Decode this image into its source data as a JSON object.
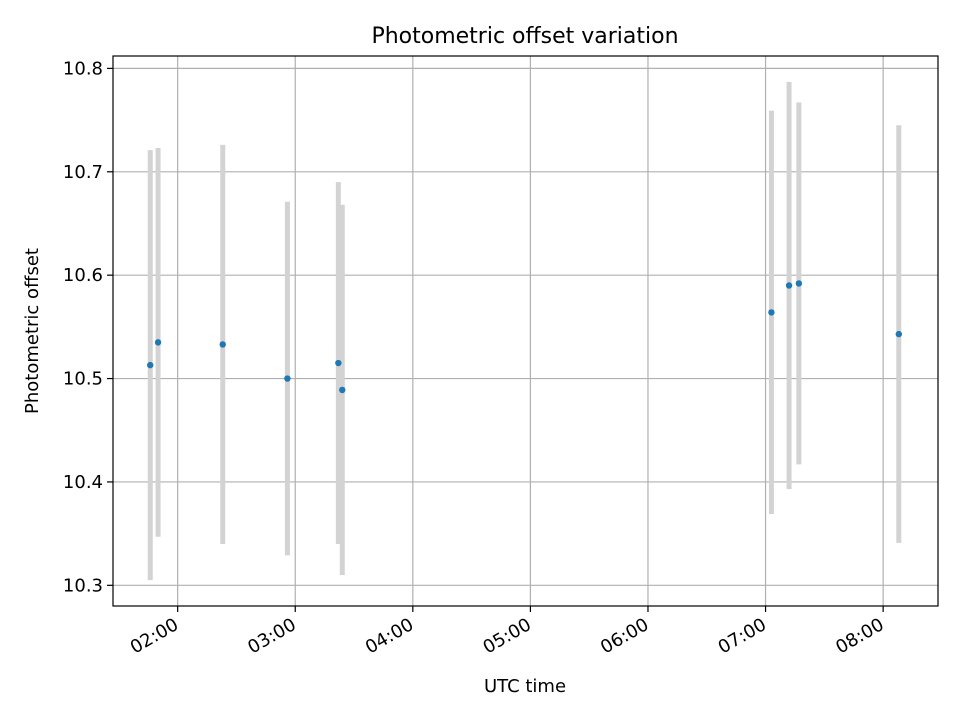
{
  "chart_data": {
    "type": "scatter",
    "title": "Photometric offset variation",
    "xlabel": "UTC time",
    "ylabel": "Photometric offset",
    "xlim": [
      "01:27",
      "08:28"
    ],
    "ylim": [
      10.28,
      10.812
    ],
    "x_ticks": [
      "02:00",
      "03:00",
      "04:00",
      "05:00",
      "06:00",
      "07:00",
      "08:00"
    ],
    "y_ticks": [
      10.3,
      10.4,
      10.5,
      10.6,
      10.7,
      10.8
    ],
    "grid": true,
    "legend": "none",
    "point_color": "#1f77b4",
    "errorbar_color": "#d3d3d3",
    "series": [
      {
        "points": [
          {
            "x": "01:46",
            "y": 10.513,
            "err": 0.208
          },
          {
            "x": "01:50",
            "y": 10.535,
            "err": 0.188
          },
          {
            "x": "02:23",
            "y": 10.533,
            "err": 0.193
          },
          {
            "x": "02:56",
            "y": 10.5,
            "err": 0.171
          },
          {
            "x": "03:22",
            "y": 10.515,
            "err": 0.175
          },
          {
            "x": "03:24",
            "y": 10.489,
            "err": 0.179
          },
          {
            "x": "07:03",
            "y": 10.564,
            "err": 0.195
          },
          {
            "x": "07:12",
            "y": 10.59,
            "err": 0.197
          },
          {
            "x": "07:17",
            "y": 10.592,
            "err": 0.175
          },
          {
            "x": "08:08",
            "y": 10.543,
            "err": 0.202
          }
        ]
      }
    ]
  }
}
